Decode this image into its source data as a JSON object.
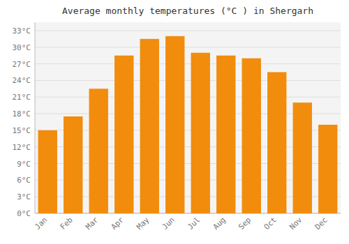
{
  "chart_data": {
    "type": "bar",
    "title": "Average monthly temperatures (°C ) in Shergarh",
    "categories": [
      "Jan",
      "Feb",
      "Mar",
      "Apr",
      "May",
      "Jun",
      "Jul",
      "Aug",
      "Sep",
      "Oct",
      "Nov",
      "Dec"
    ],
    "values": [
      15,
      17.5,
      22.5,
      28.5,
      31.5,
      32,
      29,
      28.5,
      28,
      25.5,
      20,
      16
    ],
    "color": "#f28c0d",
    "ylim": [
      0,
      34.5
    ],
    "yticks": [
      {
        "value": 0,
        "label": "0°C"
      },
      {
        "value": 3,
        "label": "3°C"
      },
      {
        "value": 6,
        "label": "6°C"
      },
      {
        "value": 9,
        "label": "9°C"
      },
      {
        "value": 12,
        "label": "12°C"
      },
      {
        "value": 15,
        "label": "15°C"
      },
      {
        "value": 18,
        "label": "18°C"
      },
      {
        "value": 21,
        "label": "21°C"
      },
      {
        "value": 24,
        "label": "24°C"
      },
      {
        "value": 27,
        "label": "27°C"
      },
      {
        "value": 30,
        "label": "30°C"
      },
      {
        "value": 33,
        "label": "33°C"
      }
    ],
    "grid": true
  }
}
